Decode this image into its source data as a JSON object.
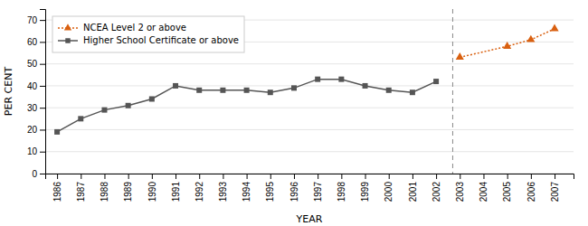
{
  "chart_data": {
    "type": "line",
    "x_label": "YEAR",
    "y_label": "PER CENT",
    "xlim": [
      1985.5,
      2007.8
    ],
    "xticks": [
      1986,
      1987,
      1988,
      1989,
      1990,
      1991,
      1992,
      1993,
      1994,
      1995,
      1996,
      1997,
      1998,
      1999,
      2000,
      2001,
      2002,
      2003,
      2004,
      2005,
      2006,
      2007
    ],
    "ylim": [
      0,
      75
    ],
    "yticks": [
      0,
      10,
      20,
      30,
      40,
      50,
      60,
      70
    ],
    "grid": "y",
    "legend": "upper left",
    "series": [
      {
        "name": "NCEA Level 2 or above",
        "color": "#d96010",
        "marker": "triangle",
        "line_style": "dotted",
        "x": [
          2003,
          2005,
          2006,
          2007
        ],
        "values": [
          53,
          58,
          61,
          66
        ]
      },
      {
        "name": "Higher School Certificate or above",
        "color": "#555555",
        "marker": "square",
        "line_style": "solid",
        "x": [
          1986,
          1987,
          1988,
          1989,
          1990,
          1991,
          1992,
          1993,
          1994,
          1995,
          1996,
          1997,
          1998,
          1999,
          2000,
          2001,
          2002
        ],
        "values": [
          19,
          25,
          29,
          31,
          34,
          40,
          38,
          38,
          38,
          37,
          39,
          43,
          43,
          40,
          38,
          37,
          42
        ]
      }
    ],
    "vline": {
      "x": 2002.7,
      "line_style": "dashed"
    }
  }
}
